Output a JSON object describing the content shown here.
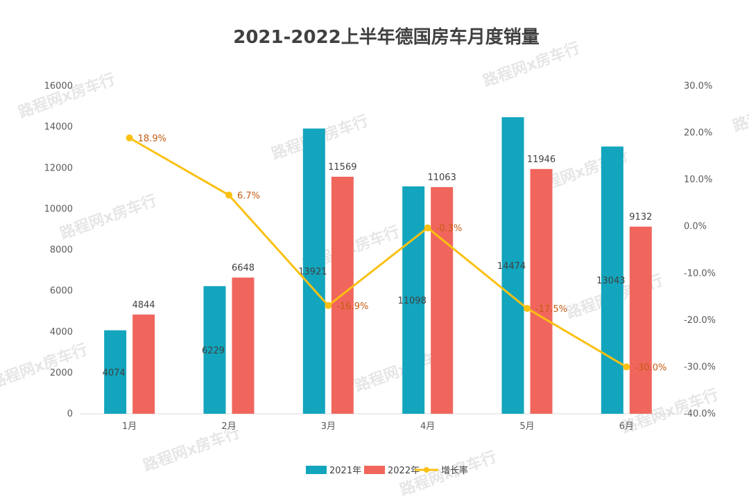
{
  "chart_data": {
    "type": "bar",
    "title": "2021-2022上半年德国房车月度销量",
    "categories": [
      "1月",
      "2月",
      "3月",
      "4月",
      "5月",
      "6月"
    ],
    "series": [
      {
        "name": "2021年",
        "type": "bar",
        "color": "#12a5bd",
        "values": [
          4074,
          6229,
          13921,
          11098,
          14474,
          13043
        ]
      },
      {
        "name": "2022年",
        "type": "bar",
        "color": "#f0665d",
        "values": [
          4844,
          6648,
          11569,
          11063,
          11946,
          9132
        ]
      },
      {
        "name": "增长率",
        "type": "line",
        "color": "#fbc011",
        "axis": "right",
        "values": [
          18.9,
          6.7,
          -16.9,
          -0.3,
          -17.5,
          -30.0
        ],
        "labels": [
          "18.9%",
          "6.7%",
          "-16.9%",
          "-0.3%",
          "-17.5%",
          "-30.0%"
        ]
      }
    ],
    "y_left": {
      "min": 0,
      "max": 16000,
      "ticks": [
        "0",
        "2000",
        "4000",
        "6000",
        "8000",
        "10000",
        "12000",
        "14000",
        "16000"
      ]
    },
    "y_right": {
      "min": -40,
      "max": 30,
      "ticks": [
        "-40.0%",
        "-30.0%",
        "-20.0%",
        "-10.0%",
        "0.0%",
        "10.0%",
        "20.0%",
        "30.0%"
      ]
    },
    "grid": false,
    "legend": "bottom"
  },
  "watermark": "路程网x房车行"
}
